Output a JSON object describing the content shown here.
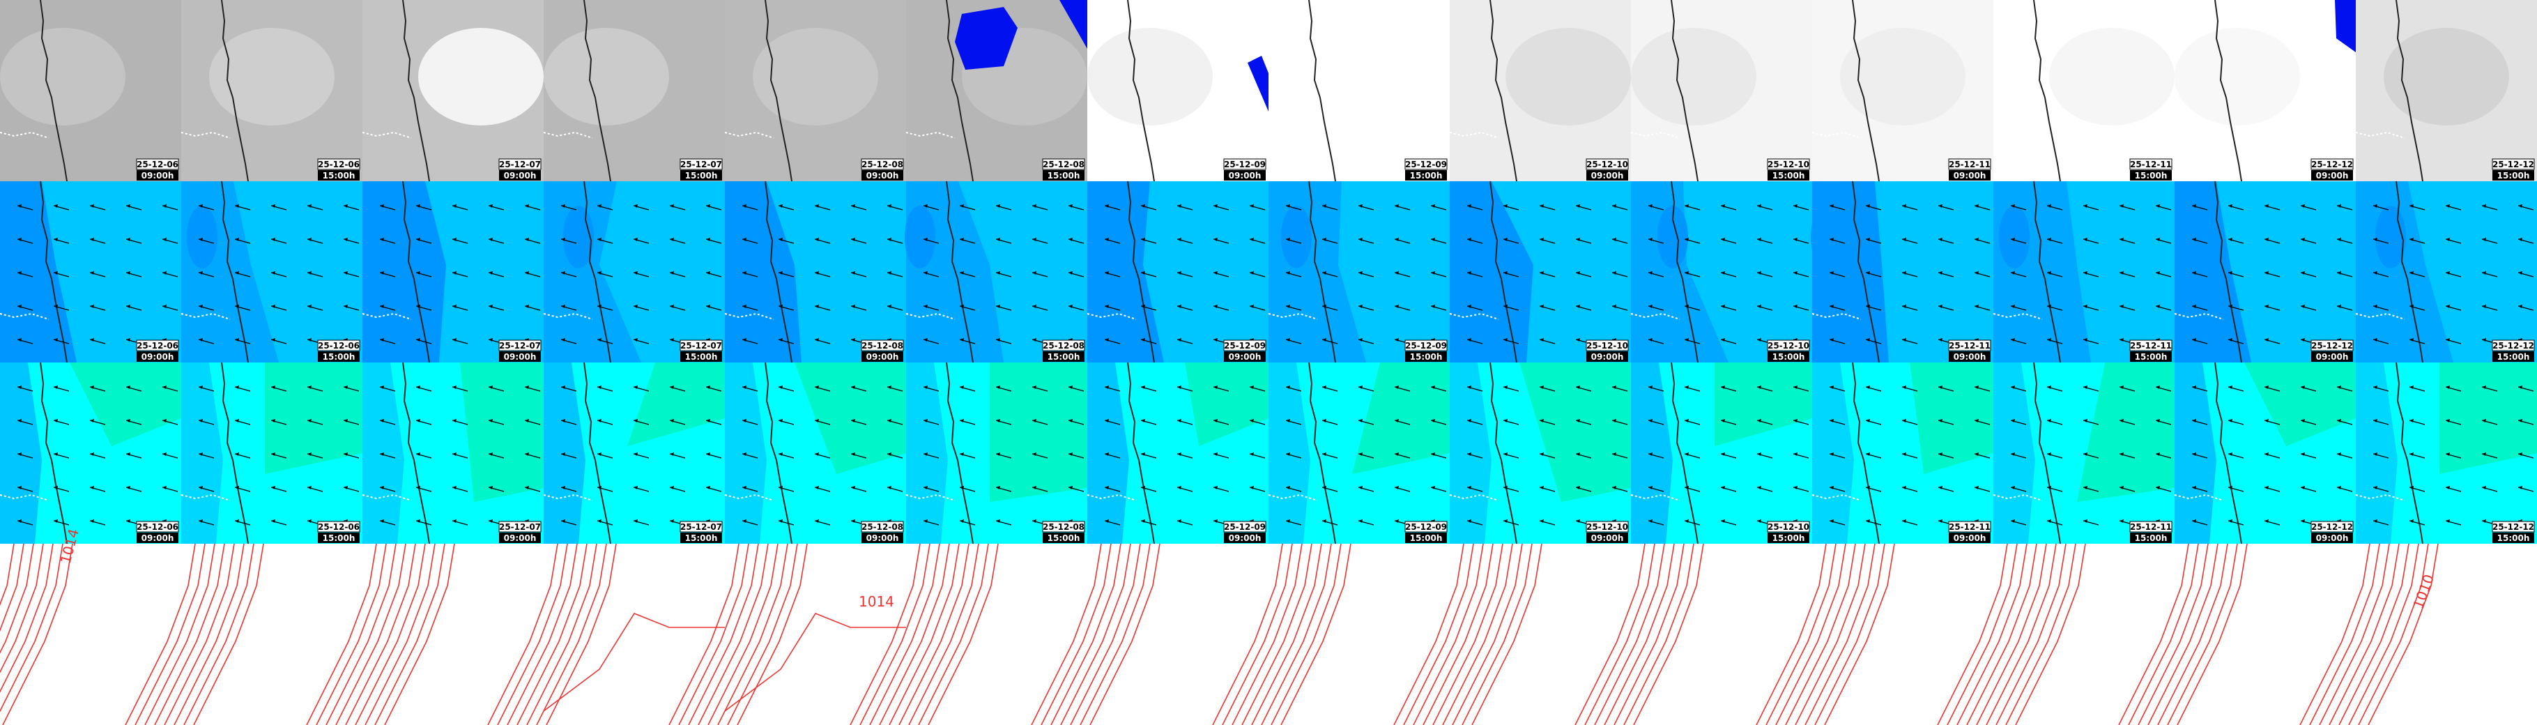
{
  "columns": [
    {
      "date": "25-12-06",
      "time": "09:00h"
    },
    {
      "date": "25-12-06",
      "time": "15:00h"
    },
    {
      "date": "25-12-07",
      "time": "09:00h"
    },
    {
      "date": "25-12-07",
      "time": "15:00h"
    },
    {
      "date": "25-12-08",
      "time": "09:00h"
    },
    {
      "date": "25-12-08",
      "time": "15:00h"
    },
    {
      "date": "25-12-09",
      "time": "09:00h"
    },
    {
      "date": "25-12-09",
      "time": "15:00h"
    },
    {
      "date": "25-12-10",
      "time": "09:00h"
    },
    {
      "date": "25-12-10",
      "time": "15:00h"
    },
    {
      "date": "25-12-11",
      "time": "09:00h"
    },
    {
      "date": "25-12-11",
      "time": "15:00h"
    },
    {
      "date": "25-12-12",
      "time": "09:00h"
    },
    {
      "date": "25-12-12",
      "time": "15:00h"
    }
  ],
  "isobar_labels": [
    "1014",
    "1014",
    "1010"
  ]
}
